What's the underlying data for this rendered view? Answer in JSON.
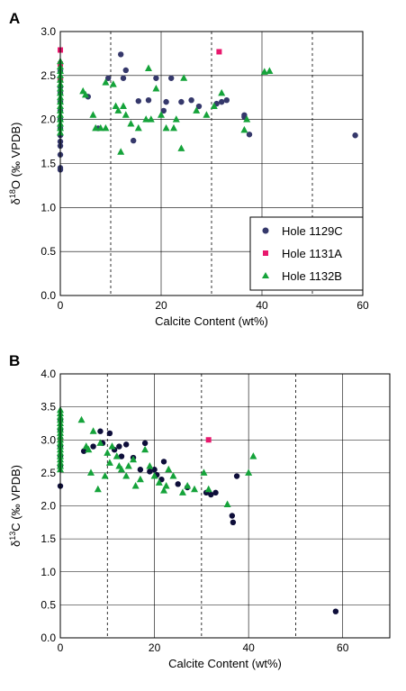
{
  "colors": {
    "1129C": "#35386b",
    "1131A": "#e8186d",
    "1132B": "#15a33a",
    "panel_b_1129C": "#0e0e3a"
  },
  "chart_data": [
    {
      "type": "scatter",
      "panel": "A",
      "xlabel": "Calcite Content (wt%)",
      "ylabel_pre": "δ",
      "ylabel_sup": "18",
      "ylabel_post": "O (‰ VPDB)",
      "xlim": [
        0,
        60
      ],
      "ylim": [
        0,
        3.0
      ],
      "xticks": [
        0,
        20,
        40,
        60
      ],
      "yticks": [
        0.0,
        0.5,
        1.0,
        1.5,
        2.0,
        2.5,
        3.0
      ],
      "xticks_labels": [
        "0",
        "20",
        "40",
        "60"
      ],
      "yticks_labels": [
        "0.0",
        "0.5",
        "1.0",
        "1.5",
        "2.0",
        "2.5",
        "3.0"
      ],
      "grid": {
        "major_y": true,
        "major_x": true,
        "minor_x_dashed": [
          10,
          30,
          50
        ]
      },
      "legend": {
        "placement": "bottom-right",
        "entries": [
          "Hole 1129C",
          "Hole 1131A",
          "Hole 1132B"
        ]
      },
      "series": [
        {
          "name": "Hole 1129C",
          "key": "1129C",
          "marker": "circle",
          "points": [
            [
              0,
              1.43
            ],
            [
              0,
              1.45
            ],
            [
              0,
              1.6
            ],
            [
              0,
              1.7
            ],
            [
              0,
              1.75
            ],
            [
              0,
              1.82
            ],
            [
              0,
              1.9
            ],
            [
              0,
              2.0
            ],
            [
              0,
              2.1
            ],
            [
              0,
              2.2
            ],
            [
              0,
              2.3
            ],
            [
              0,
              2.37
            ],
            [
              0,
              2.45
            ],
            [
              0,
              2.55
            ],
            [
              5.5,
              2.26
            ],
            [
              7.5,
              1.9
            ],
            [
              9.5,
              2.47
            ],
            [
              12,
              2.74
            ],
            [
              12.5,
              2.47
            ],
            [
              13,
              2.56
            ],
            [
              14.5,
              1.76
            ],
            [
              15.5,
              2.21
            ],
            [
              17.5,
              2.22
            ],
            [
              19,
              2.47
            ],
            [
              20.5,
              2.1
            ],
            [
              21,
              2.2
            ],
            [
              22,
              2.47
            ],
            [
              24,
              2.2
            ],
            [
              26,
              2.22
            ],
            [
              27.5,
              2.15
            ],
            [
              31,
              2.18
            ],
            [
              32,
              2.2
            ],
            [
              33,
              2.22
            ],
            [
              36.5,
              2.05
            ],
            [
              36.5,
              2.03
            ],
            [
              37.5,
              1.83
            ],
            [
              58.5,
              1.82
            ]
          ]
        },
        {
          "name": "Hole 1131A",
          "key": "1131A",
          "marker": "square",
          "points": [
            [
              0,
              2.79
            ],
            [
              0,
              2.63
            ],
            [
              0,
              2.45
            ],
            [
              31.5,
              2.77
            ]
          ]
        },
        {
          "name": "Hole 1132B",
          "key": "1132B",
          "marker": "triangle",
          "points": [
            [
              0,
              2.66
            ],
            [
              0,
              2.6
            ],
            [
              0,
              2.55
            ],
            [
              0,
              2.5
            ],
            [
              0,
              2.45
            ],
            [
              0,
              2.4
            ],
            [
              0,
              2.35
            ],
            [
              0,
              2.3
            ],
            [
              0,
              2.25
            ],
            [
              0,
              2.2
            ],
            [
              0,
              2.15
            ],
            [
              0,
              2.1
            ],
            [
              0,
              2.05
            ],
            [
              0,
              2.0
            ],
            [
              0,
              1.95
            ],
            [
              0,
              1.9
            ],
            [
              0,
              1.85
            ],
            [
              4.5,
              2.32
            ],
            [
              5,
              2.28
            ],
            [
              6.5,
              2.05
            ],
            [
              7,
              1.9
            ],
            [
              8,
              1.9
            ],
            [
              9,
              1.9
            ],
            [
              9,
              2.42
            ],
            [
              10.5,
              2.4
            ],
            [
              11,
              2.15
            ],
            [
              11.5,
              2.1
            ],
            [
              12,
              1.63
            ],
            [
              12.5,
              2.15
            ],
            [
              13,
              2.05
            ],
            [
              14,
              1.95
            ],
            [
              15.5,
              1.9
            ],
            [
              17,
              2.0
            ],
            [
              17.5,
              2.58
            ],
            [
              18,
              2.0
            ],
            [
              19,
              2.35
            ],
            [
              20,
              2.05
            ],
            [
              21,
              1.9
            ],
            [
              22.5,
              1.9
            ],
            [
              23,
              2.0
            ],
            [
              24,
              1.67
            ],
            [
              24.5,
              2.47
            ],
            [
              27,
              2.1
            ],
            [
              29,
              2.05
            ],
            [
              30.5,
              2.15
            ],
            [
              32,
              2.3
            ],
            [
              36.5,
              1.88
            ],
            [
              37,
              2.0
            ],
            [
              40.5,
              2.54
            ],
            [
              41.5,
              2.55
            ]
          ]
        }
      ]
    },
    {
      "type": "scatter",
      "panel": "B",
      "xlabel": "Calcite Content (wt%)",
      "ylabel_pre": "δ",
      "ylabel_sup": "13",
      "ylabel_post": "C (‰ VPDB)",
      "xlim": [
        0,
        70
      ],
      "ylim": [
        0,
        4.0
      ],
      "xticks": [
        0,
        20,
        40,
        60
      ],
      "yticks": [
        0.0,
        0.5,
        1.0,
        1.5,
        2.0,
        2.5,
        3.0,
        3.5,
        4.0
      ],
      "xticks_labels": [
        "0",
        "20",
        "40",
        "60"
      ],
      "yticks_labels": [
        "0.0",
        "0.5",
        "1.0",
        "1.5",
        "2.0",
        "2.5",
        "3.0",
        "3.5",
        "4.0"
      ],
      "grid": {
        "major_y": true,
        "major_x": true,
        "minor_x_dashed": [
          10,
          30,
          50
        ]
      },
      "legend": null,
      "series": [
        {
          "key": "panel_b_1129C",
          "marker": "circle",
          "points": [
            [
              0,
              3.3
            ],
            [
              0,
              3.15
            ],
            [
              0,
              2.9
            ],
            [
              0,
              2.75
            ],
            [
              0,
              2.6
            ],
            [
              0,
              2.3
            ],
            [
              5,
              2.83
            ],
            [
              7,
              2.9
            ],
            [
              8.5,
              3.13
            ],
            [
              9,
              2.95
            ],
            [
              10.5,
              3.1
            ],
            [
              11.5,
              2.85
            ],
            [
              12.5,
              2.9
            ],
            [
              13,
              2.75
            ],
            [
              14,
              2.93
            ],
            [
              15.5,
              2.73
            ],
            [
              17,
              2.55
            ],
            [
              18,
              2.95
            ],
            [
              19,
              2.52
            ],
            [
              20,
              2.55
            ],
            [
              20.5,
              2.47
            ],
            [
              21.5,
              2.4
            ],
            [
              22,
              2.67
            ],
            [
              25,
              2.33
            ],
            [
              27,
              2.28
            ],
            [
              31,
              2.2
            ],
            [
              32,
              2.17
            ],
            [
              33,
              2.2
            ],
            [
              36.5,
              1.85
            ],
            [
              36.7,
              1.75
            ],
            [
              37.5,
              2.45
            ],
            [
              58.5,
              0.4
            ]
          ]
        },
        {
          "key": "1131A",
          "marker": "square",
          "points": [
            [
              0,
              3.0
            ],
            [
              31.5,
              3.0
            ]
          ]
        },
        {
          "key": "1132B",
          "marker": "triangle",
          "points": [
            [
              0,
              3.45
            ],
            [
              0,
              3.4
            ],
            [
              0,
              3.35
            ],
            [
              0,
              3.3
            ],
            [
              0,
              3.25
            ],
            [
              0,
              3.2
            ],
            [
              0,
              3.15
            ],
            [
              0,
              3.1
            ],
            [
              0,
              3.05
            ],
            [
              0,
              3.0
            ],
            [
              0,
              2.95
            ],
            [
              0,
              2.9
            ],
            [
              0,
              2.85
            ],
            [
              0,
              2.8
            ],
            [
              0,
              2.75
            ],
            [
              0,
              2.7
            ],
            [
              0,
              2.65
            ],
            [
              0,
              2.6
            ],
            [
              0,
              2.55
            ],
            [
              4.5,
              3.3
            ],
            [
              5.5,
              2.9
            ],
            [
              6,
              2.85
            ],
            [
              6.5,
              2.5
            ],
            [
              7,
              3.13
            ],
            [
              8,
              2.25
            ],
            [
              8.5,
              2.95
            ],
            [
              9.5,
              2.45
            ],
            [
              10,
              2.8
            ],
            [
              10.5,
              2.65
            ],
            [
              11,
              2.9
            ],
            [
              12,
              2.75
            ],
            [
              12.5,
              2.6
            ],
            [
              13,
              2.55
            ],
            [
              14,
              2.45
            ],
            [
              14.5,
              2.6
            ],
            [
              15.5,
              2.7
            ],
            [
              16,
              2.3
            ],
            [
              17,
              2.4
            ],
            [
              18,
              2.85
            ],
            [
              19,
              2.6
            ],
            [
              20,
              2.45
            ],
            [
              21,
              2.35
            ],
            [
              22,
              2.23
            ],
            [
              22.5,
              2.3
            ],
            [
              23,
              2.55
            ],
            [
              24,
              2.45
            ],
            [
              26,
              2.2
            ],
            [
              27,
              2.3
            ],
            [
              28.5,
              2.25
            ],
            [
              30.5,
              2.5
            ],
            [
              31.5,
              2.25
            ],
            [
              35.5,
              2.02
            ],
            [
              40,
              2.5
            ],
            [
              41,
              2.75
            ]
          ]
        }
      ]
    }
  ]
}
